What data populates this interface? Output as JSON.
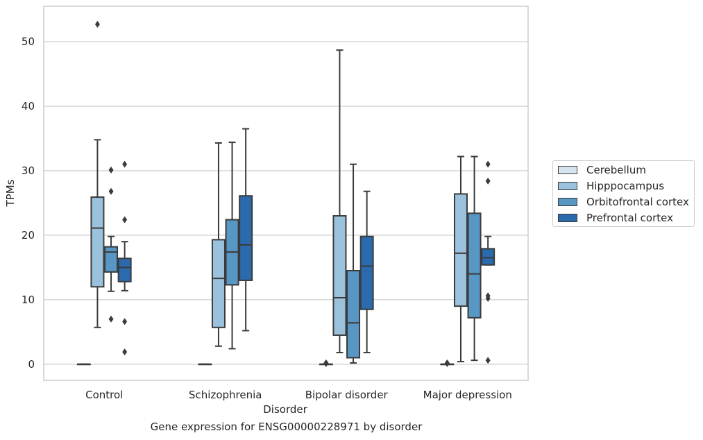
{
  "chart_data": {
    "type": "box",
    "title": "Gene expression for ENSG00000228971 by disorder",
    "xlabel": "Disorder",
    "ylabel": "TPMs",
    "ylim": [
      -2.5,
      55.5
    ],
    "yticks": [
      0,
      10,
      20,
      30,
      40,
      50
    ],
    "categories": [
      "Control",
      "Schizophrenia",
      "Bipolar disorder",
      "Major depression"
    ],
    "grid": "horizontal",
    "legend_position": "right",
    "series": [
      {
        "name": "Cerebellum",
        "color": "#d6e4f0",
        "boxes": [
          {
            "q1": 0,
            "median": 0,
            "q3": 0,
            "whisker_low": 0,
            "whisker_high": 0,
            "outliers": []
          },
          {
            "q1": 0,
            "median": 0,
            "q3": 0,
            "whisker_low": 0,
            "whisker_high": 0,
            "outliers": []
          },
          {
            "q1": 0,
            "median": 0,
            "q3": 0,
            "whisker_low": 0,
            "whisker_high": 0,
            "outliers": [
              0.1,
              0.2
            ]
          },
          {
            "q1": 0,
            "median": 0,
            "q3": 0,
            "whisker_low": 0,
            "whisker_high": 0,
            "outliers": [
              0.1,
              0.2
            ]
          }
        ]
      },
      {
        "name": "Hipppocampus",
        "color": "#9ac2dc",
        "boxes": [
          {
            "q1": 12.0,
            "median": 21.1,
            "q3": 25.9,
            "whisker_low": 5.7,
            "whisker_high": 34.8,
            "outliers": [
              52.7
            ]
          },
          {
            "q1": 5.7,
            "median": 13.3,
            "q3": 19.3,
            "whisker_low": 2.8,
            "whisker_high": 34.3,
            "outliers": []
          },
          {
            "q1": 4.5,
            "median": 10.3,
            "q3": 23.0,
            "whisker_low": 1.8,
            "whisker_high": 48.7,
            "outliers": []
          },
          {
            "q1": 9.0,
            "median": 17.2,
            "q3": 26.4,
            "whisker_low": 0.4,
            "whisker_high": 32.2,
            "outliers": []
          }
        ]
      },
      {
        "name": "Orbitofrontal cortex",
        "color": "#5896c4",
        "boxes": [
          {
            "q1": 14.3,
            "median": 17.4,
            "q3": 18.2,
            "whisker_low": 11.3,
            "whisker_high": 19.8,
            "outliers": [
              30.1,
              26.8,
              7.0
            ]
          },
          {
            "q1": 12.3,
            "median": 17.4,
            "q3": 22.4,
            "whisker_low": 2.4,
            "whisker_high": 34.4,
            "outliers": []
          },
          {
            "q1": 1.0,
            "median": 6.4,
            "q3": 14.5,
            "whisker_low": 0.2,
            "whisker_high": 31.0,
            "outliers": []
          },
          {
            "q1": 7.2,
            "median": 14.0,
            "q3": 23.4,
            "whisker_low": 0.6,
            "whisker_high": 32.2,
            "outliers": []
          }
        ]
      },
      {
        "name": "Prefrontal cortex",
        "color": "#2b6aad",
        "boxes": [
          {
            "q1": 12.8,
            "median": 15.0,
            "q3": 16.4,
            "whisker_low": 11.4,
            "whisker_high": 19.0,
            "outliers": [
              31.0,
              22.4,
              6.6,
              1.9
            ]
          },
          {
            "q1": 13.0,
            "median": 18.5,
            "q3": 26.1,
            "whisker_low": 5.2,
            "whisker_high": 36.5,
            "outliers": []
          },
          {
            "q1": 8.5,
            "median": 15.2,
            "q3": 19.8,
            "whisker_low": 1.8,
            "whisker_high": 26.8,
            "outliers": []
          },
          {
            "q1": 15.4,
            "median": 16.5,
            "q3": 17.9,
            "whisker_low": 15.4,
            "whisker_high": 19.8,
            "outliers": [
              31.0,
              28.4,
              10.6,
              10.2,
              0.6
            ]
          }
        ]
      }
    ]
  }
}
